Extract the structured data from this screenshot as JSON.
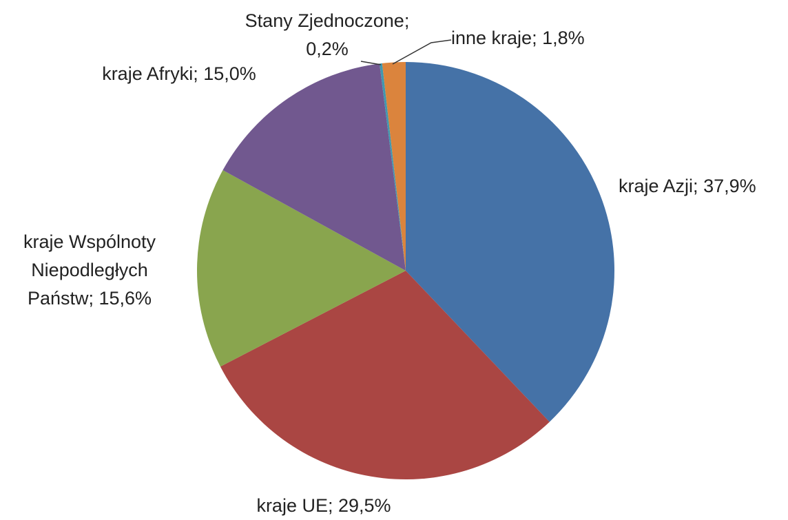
{
  "chart_data": {
    "type": "pie",
    "categories": [
      "kraje Azji;",
      "kraje UE;",
      "kraje Wspólnoty Niepodległych Państw;",
      "kraje Afryki;",
      "Stany Zjednoczone;",
      "inne kraje;"
    ],
    "values": [
      37.9,
      29.5,
      15.6,
      15.0,
      0.2,
      1.8
    ],
    "value_labels": [
      "37,9%",
      "29,5%",
      "15,6%",
      "15,0%",
      "0,2%",
      "1,8%"
    ],
    "colors": [
      "#4572a7",
      "#aa4643",
      "#89a54e",
      "#71588f",
      "#4198af",
      "#db843d"
    ]
  }
}
